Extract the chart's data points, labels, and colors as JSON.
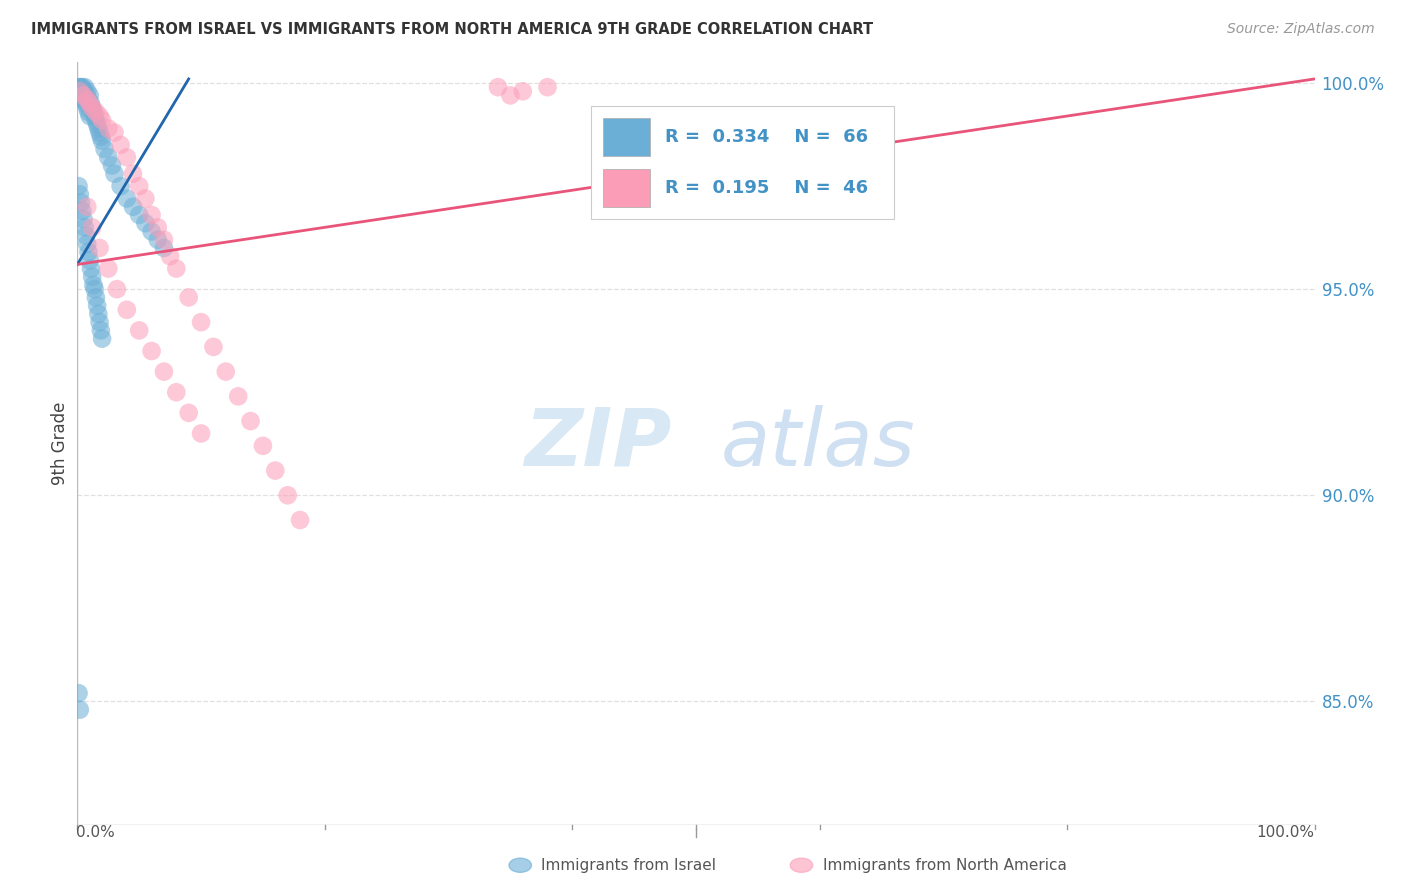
{
  "title": "IMMIGRANTS FROM ISRAEL VS IMMIGRANTS FROM NORTH AMERICA 9TH GRADE CORRELATION CHART",
  "source": "Source: ZipAtlas.com",
  "ylabel": "9th Grade",
  "xlim": [
    0.0,
    1.0
  ],
  "ylim": [
    0.82,
    1.005
  ],
  "yticks": [
    0.85,
    0.9,
    0.95,
    1.0
  ],
  "ytick_labels": [
    "85.0%",
    "90.0%",
    "95.0%",
    "100.0%"
  ],
  "blue_color": "#6baed6",
  "pink_color": "#fc9db8",
  "blue_line_color": "#2166ac",
  "pink_line_color": "#e8547a",
  "legend_text_color": "#4292c6",
  "R_blue": 0.334,
  "N_blue": 66,
  "R_pink": 0.195,
  "N_pink": 46,
  "watermark_zip": "ZIP",
  "watermark_atlas": "atlas",
  "background_color": "#ffffff",
  "grid_color": "#e0e0e0",
  "blue_scatter_x": [
    0.001,
    0.002,
    0.003,
    0.003,
    0.004,
    0.004,
    0.005,
    0.005,
    0.006,
    0.006,
    0.007,
    0.007,
    0.008,
    0.008,
    0.009,
    0.009,
    0.01,
    0.01,
    0.011,
    0.012,
    0.013,
    0.014,
    0.015,
    0.016,
    0.017,
    0.018,
    0.019,
    0.02,
    0.022,
    0.025,
    0.028,
    0.03,
    0.035,
    0.04,
    0.045,
    0.05,
    0.055,
    0.06,
    0.065,
    0.07,
    0.001,
    0.002,
    0.003,
    0.004,
    0.005,
    0.006,
    0.007,
    0.008,
    0.009,
    0.01,
    0.011,
    0.012,
    0.013,
    0.014,
    0.015,
    0.016,
    0.017,
    0.018,
    0.019,
    0.02,
    0.001,
    0.002,
    0.003,
    0.004,
    0.005,
    0.006
  ],
  "blue_scatter_y": [
    0.999,
    0.999,
    0.998,
    0.997,
    0.998,
    0.996,
    0.998,
    0.997,
    0.999,
    0.996,
    0.997,
    0.995,
    0.998,
    0.994,
    0.996,
    0.993,
    0.997,
    0.992,
    0.995,
    0.994,
    0.993,
    0.992,
    0.991,
    0.99,
    0.989,
    0.988,
    0.987,
    0.986,
    0.984,
    0.982,
    0.98,
    0.978,
    0.975,
    0.972,
    0.97,
    0.968,
    0.966,
    0.964,
    0.962,
    0.96,
    0.975,
    0.973,
    0.971,
    0.969,
    0.967,
    0.965,
    0.963,
    0.961,
    0.959,
    0.957,
    0.955,
    0.953,
    0.951,
    0.95,
    0.948,
    0.946,
    0.944,
    0.942,
    0.94,
    0.938,
    0.852,
    0.848,
    0.999,
    0.999,
    0.998,
    0.997
  ],
  "pink_scatter_x": [
    0.002,
    0.005,
    0.008,
    0.01,
    0.012,
    0.015,
    0.018,
    0.02,
    0.025,
    0.03,
    0.035,
    0.04,
    0.045,
    0.05,
    0.055,
    0.06,
    0.065,
    0.07,
    0.075,
    0.08,
    0.09,
    0.1,
    0.11,
    0.12,
    0.13,
    0.14,
    0.15,
    0.16,
    0.17,
    0.18,
    0.008,
    0.012,
    0.018,
    0.025,
    0.032,
    0.04,
    0.05,
    0.06,
    0.07,
    0.08,
    0.09,
    0.1,
    0.34,
    0.36,
    0.38,
    0.35
  ],
  "pink_scatter_y": [
    0.998,
    0.997,
    0.996,
    0.995,
    0.994,
    0.993,
    0.992,
    0.991,
    0.989,
    0.988,
    0.985,
    0.982,
    0.978,
    0.975,
    0.972,
    0.968,
    0.965,
    0.962,
    0.958,
    0.955,
    0.948,
    0.942,
    0.936,
    0.93,
    0.924,
    0.918,
    0.912,
    0.906,
    0.9,
    0.894,
    0.97,
    0.965,
    0.96,
    0.955,
    0.95,
    0.945,
    0.94,
    0.935,
    0.93,
    0.925,
    0.92,
    0.915,
    0.999,
    0.998,
    0.999,
    0.997
  ],
  "blue_line_x0": 0.0,
  "blue_line_x1": 0.09,
  "blue_line_y0": 0.956,
  "blue_line_y1": 1.001,
  "pink_line_x0": 0.0,
  "pink_line_x1": 1.0,
  "pink_line_y0": 0.956,
  "pink_line_y1": 1.001
}
